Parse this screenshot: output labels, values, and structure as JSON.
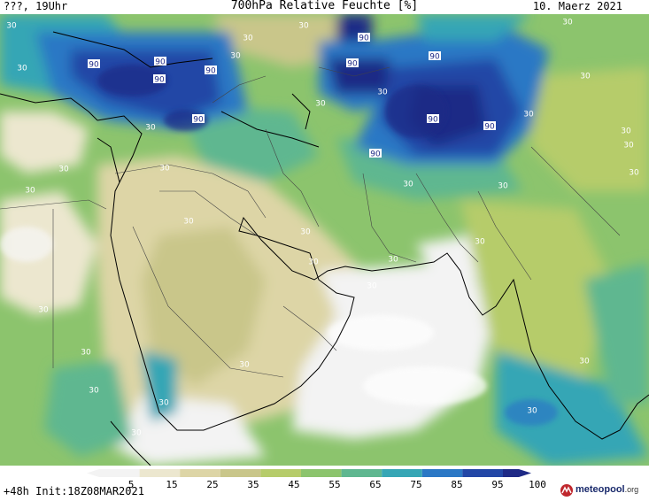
{
  "header": {
    "left": "???, 19Uhr",
    "title": "700hPa Relative Feuchte [%]",
    "date": "10. Maerz 2021"
  },
  "footer": {
    "init": "+48h Init:18Z08MAR2021",
    "logo_main": "meteopool",
    "logo_tld": ".org"
  },
  "legend": {
    "ticks": [
      "5",
      "15",
      "25",
      "35",
      "45",
      "55",
      "65",
      "75",
      "85",
      "95",
      "100"
    ],
    "colors": [
      "#f3f3f3",
      "#ece7cf",
      "#ddd5a6",
      "#c9c68a",
      "#b6cc6a",
      "#8cc46d",
      "#5fb790",
      "#36a6b5",
      "#2b78c5",
      "#2347a6",
      "#1f2a86"
    ]
  },
  "map": {
    "contour_levels": [
      "30",
      "90"
    ],
    "labels_30": [
      "30",
      "30",
      "30",
      "30",
      "30",
      "30",
      "30",
      "30",
      "30",
      "30",
      "30",
      "30",
      "30",
      "30",
      "30",
      "30",
      "30",
      "30",
      "30",
      "30",
      "30",
      "30",
      "30",
      "30",
      "30",
      "30",
      "30",
      "30",
      "30",
      "30",
      "30",
      "30",
      "30"
    ],
    "labels_90": [
      "90",
      "90",
      "90",
      "90",
      "90",
      "90",
      "90",
      "90",
      "90",
      "90",
      "90"
    ]
  }
}
